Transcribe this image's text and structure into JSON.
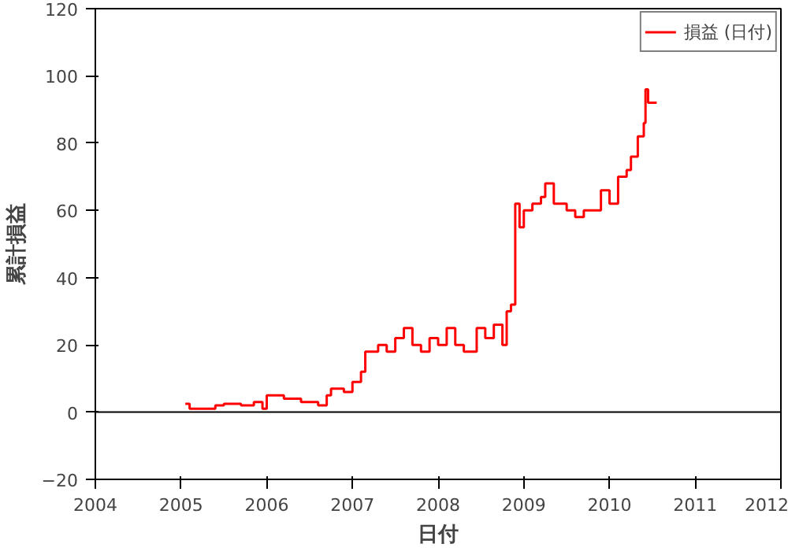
{
  "chart_data": {
    "type": "step",
    "xlabel": "日付",
    "ylabel": "累計損益",
    "xlim": [
      2004,
      2012
    ],
    "xticks": [
      2004,
      2005,
      2006,
      2007,
      2008,
      2009,
      2010,
      2011,
      2012
    ],
    "ylim": [
      -20,
      120
    ],
    "yticks": [
      -20,
      0,
      20,
      40,
      60,
      80,
      100,
      120
    ],
    "grid": false,
    "legend": "top right",
    "ref_lines": [
      {
        "axis": "y",
        "value": 0,
        "color": "#000000"
      }
    ],
    "series": [
      {
        "name": "損益 (日付)",
        "color": "#ff0000",
        "x": [
          2005.05,
          2005.1,
          2005.3,
          2005.4,
          2005.5,
          2005.7,
          2005.85,
          2005.95,
          2006.0,
          2006.2,
          2006.4,
          2006.6,
          2006.7,
          2006.75,
          2006.9,
          2007.0,
          2007.1,
          2007.15,
          2007.3,
          2007.4,
          2007.5,
          2007.6,
          2007.7,
          2007.8,
          2007.9,
          2008.0,
          2008.1,
          2008.2,
          2008.3,
          2008.45,
          2008.55,
          2008.65,
          2008.75,
          2008.8,
          2008.85,
          2008.9,
          2008.95,
          2009.0,
          2009.1,
          2009.2,
          2009.25,
          2009.35,
          2009.5,
          2009.6,
          2009.7,
          2009.8,
          2009.9,
          2010.0,
          2010.1,
          2010.2,
          2010.25,
          2010.33,
          2010.4,
          2010.42,
          2010.45,
          2010.55
        ],
        "values": [
          2.5,
          1,
          1,
          2,
          2.5,
          2,
          3,
          1,
          5,
          4,
          3,
          2,
          5,
          7,
          6,
          9,
          12,
          18,
          20,
          18,
          22,
          25,
          20,
          18,
          22,
          20,
          25,
          20,
          18,
          25,
          22,
          26,
          20,
          30,
          32,
          62,
          55,
          60,
          62,
          64,
          68,
          62,
          60,
          58,
          60,
          60,
          66,
          62,
          70,
          72,
          76,
          82,
          86,
          96,
          92,
          92
        ]
      }
    ]
  }
}
